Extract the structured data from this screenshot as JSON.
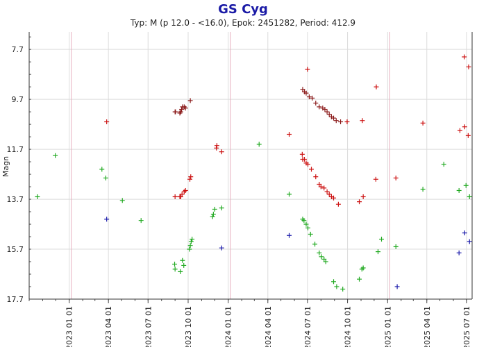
{
  "chart_data": {
    "type": "scatter",
    "title": "GS Cyg",
    "subtitle": "Typ: M (p 12.0 - <16.0), Epok: 2451282, Period: 412.9",
    "ylabel": "Magn",
    "ylim": [
      17.7,
      7.0
    ],
    "y_ticks": [
      7.7,
      9.7,
      11.7,
      13.7,
      15.7,
      17.7
    ],
    "y_tick_labels": [
      "7.7",
      "9.7",
      "11.7",
      "13.7",
      "15.7",
      "17.7"
    ],
    "x_tick_labels": [
      "2023 01 01",
      "2023 04 01",
      "2023 07 01",
      "2023 10 01",
      "2024 01 01",
      "2024 04 01",
      "2024 07 01",
      "2024 10 01",
      "2025 01 01",
      "2025 04 01",
      "2025 07 01"
    ],
    "grid": true,
    "marker": "+",
    "colors": {
      "dark_red": "#8b1a1a",
      "red": "#cc1111",
      "green": "#22aa22",
      "blue": "#1a1aaa",
      "title": "#1a1aa6"
    },
    "series": [
      {
        "color": "#8b1a1a",
        "points": [
          [
            "2023-09-01",
            10.2
          ],
          [
            "2023-09-02",
            10.2
          ],
          [
            "2023-09-12",
            10.25
          ],
          [
            "2023-09-14",
            10.2
          ],
          [
            "2023-09-16",
            10.1
          ],
          [
            "2023-09-18",
            10.0
          ],
          [
            "2023-09-22",
            10.0
          ],
          [
            "2023-09-25",
            10.05
          ],
          [
            "2023-10-06",
            9.75
          ],
          [
            "2024-06-20",
            9.3
          ],
          [
            "2024-06-24",
            9.4
          ],
          [
            "2024-06-28",
            9.45
          ],
          [
            "2024-07-05",
            9.6
          ],
          [
            "2024-07-12",
            9.65
          ],
          [
            "2024-07-20",
            9.85
          ],
          [
            "2024-07-28",
            10.0
          ],
          [
            "2024-08-05",
            10.05
          ],
          [
            "2024-08-10",
            10.1
          ],
          [
            "2024-08-15",
            10.2
          ],
          [
            "2024-08-20",
            10.3
          ],
          [
            "2024-08-25",
            10.4
          ],
          [
            "2024-08-30",
            10.45
          ],
          [
            "2024-09-05",
            10.55
          ],
          [
            "2024-09-15",
            10.6
          ]
        ]
      },
      {
        "color": "#cc1111",
        "points": [
          [
            "2023-03-28",
            10.6
          ],
          [
            "2023-12-05",
            11.65
          ],
          [
            "2023-12-06",
            11.55
          ],
          [
            "2023-12-17",
            11.8
          ],
          [
            "2024-05-20",
            11.1
          ],
          [
            "2024-09-30",
            10.6
          ],
          [
            "2024-11-04",
            10.55
          ],
          [
            "2024-12-06",
            9.2
          ],
          [
            "2025-03-23",
            10.65
          ],
          [
            "2025-06-16",
            10.95
          ],
          [
            "2025-06-26",
            8.0
          ],
          [
            "2025-06-27",
            10.8
          ],
          [
            "2025-07-05",
            11.15
          ],
          [
            "2025-07-06",
            8.4
          ],
          [
            "2023-09-01",
            13.6
          ],
          [
            "2023-09-12",
            13.6
          ],
          [
            "2023-09-14",
            13.6
          ],
          [
            "2023-09-17",
            13.5
          ],
          [
            "2023-09-22",
            13.4
          ],
          [
            "2023-09-25",
            13.35
          ],
          [
            "2023-10-05",
            12.9
          ],
          [
            "2023-10-07",
            12.8
          ],
          [
            "2024-06-19",
            11.9
          ],
          [
            "2024-06-20",
            12.1
          ],
          [
            "2024-06-24",
            12.1
          ],
          [
            "2024-06-28",
            12.25
          ],
          [
            "2024-07-02",
            12.3
          ],
          [
            "2024-07-10",
            12.5
          ],
          [
            "2024-07-20",
            12.8
          ],
          [
            "2024-07-28",
            13.1
          ],
          [
            "2024-08-01",
            13.2
          ],
          [
            "2024-08-08",
            13.25
          ],
          [
            "2024-08-15",
            13.4
          ],
          [
            "2024-08-20",
            13.5
          ],
          [
            "2024-08-25",
            13.6
          ],
          [
            "2024-08-30",
            13.65
          ],
          [
            "2024-09-10",
            13.9
          ],
          [
            "2024-10-28",
            13.8
          ],
          [
            "2024-11-06",
            13.6
          ],
          [
            "2024-12-05",
            12.9
          ],
          [
            "2025-01-20",
            12.85
          ],
          [
            "2024-07-01",
            8.5
          ]
        ]
      },
      {
        "color": "#22aa22",
        "points": [
          [
            "2022-10-20",
            13.6
          ],
          [
            "2022-11-30",
            11.95
          ],
          [
            "2023-03-17",
            12.5
          ],
          [
            "2023-03-26",
            12.85
          ],
          [
            "2023-05-03",
            13.75
          ],
          [
            "2023-06-15",
            14.55
          ],
          [
            "2023-08-31",
            16.3
          ],
          [
            "2023-09-01",
            16.5
          ],
          [
            "2023-09-13",
            16.6
          ],
          [
            "2023-09-18",
            16.15
          ],
          [
            "2023-09-21",
            16.35
          ],
          [
            "2023-10-04",
            15.7
          ],
          [
            "2023-10-06",
            15.55
          ],
          [
            "2023-10-08",
            15.4
          ],
          [
            "2023-10-10",
            15.3
          ],
          [
            "2023-11-26",
            14.4
          ],
          [
            "2023-11-28",
            14.3
          ],
          [
            "2023-12-01",
            14.1
          ],
          [
            "2023-12-17",
            14.05
          ],
          [
            "2024-03-12",
            11.5
          ],
          [
            "2024-05-20",
            13.5
          ],
          [
            "2024-06-20",
            14.5
          ],
          [
            "2024-06-23",
            14.55
          ],
          [
            "2024-06-28",
            14.7
          ],
          [
            "2024-07-02",
            14.85
          ],
          [
            "2024-07-08",
            15.1
          ],
          [
            "2024-07-18",
            15.5
          ],
          [
            "2024-07-28",
            15.85
          ],
          [
            "2024-08-02",
            16.0
          ],
          [
            "2024-08-08",
            16.1
          ],
          [
            "2024-08-12",
            16.2
          ],
          [
            "2024-08-30",
            17.0
          ],
          [
            "2024-09-06",
            17.2
          ],
          [
            "2024-09-20",
            17.3
          ],
          [
            "2024-10-28",
            16.9
          ],
          [
            "2024-11-03",
            16.5
          ],
          [
            "2024-11-06",
            16.45
          ],
          [
            "2024-12-10",
            15.8
          ],
          [
            "2024-12-18",
            15.3
          ],
          [
            "2025-01-20",
            15.6
          ],
          [
            "2025-03-23",
            13.3
          ],
          [
            "2025-05-10",
            12.3
          ],
          [
            "2025-06-14",
            13.35
          ],
          [
            "2025-06-30",
            13.15
          ],
          [
            "2025-07-08",
            13.6
          ]
        ]
      },
      {
        "color": "#1a1aaa",
        "points": [
          [
            "2023-03-28",
            14.5
          ],
          [
            "2023-12-17",
            15.65
          ],
          [
            "2024-05-20",
            15.15
          ],
          [
            "2025-01-23",
            17.2
          ],
          [
            "2025-06-14",
            15.85
          ],
          [
            "2025-06-27",
            15.05
          ],
          [
            "2025-07-08",
            15.4
          ]
        ]
      }
    ]
  }
}
